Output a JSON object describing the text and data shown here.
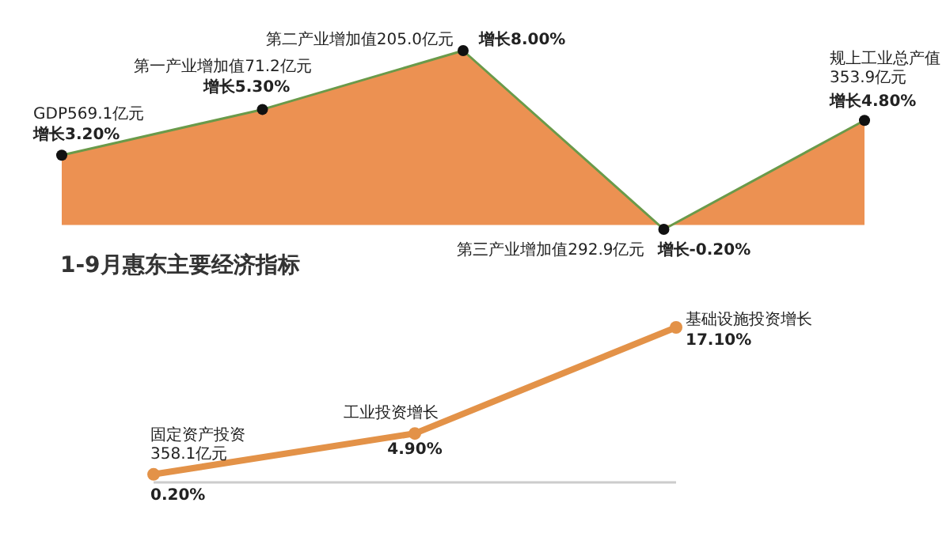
{
  "chart_data": [
    {
      "type": "area",
      "categories": [
        null,
        null,
        null,
        null,
        null
      ],
      "values": [
        3.2,
        5.3,
        8.0,
        -0.2,
        4.8
      ],
      "value_labels": [
        "增长3.20%",
        "增长5.30%",
        "增长8.00%",
        "增长-0.20%",
        "增长4.80%"
      ],
      "annotations": [
        "GDP569.1亿元",
        "第一产业增加值71.2亿元",
        "第二产业增加值205.0亿元",
        "第三产业增加值292.9亿元",
        "规上工业总产值\n353.9亿元"
      ],
      "color": "#ec9152",
      "marker": "circle"
    },
    {
      "type": "line",
      "title": "1-9月惠东主要经济指标",
      "categories": [
        null,
        null,
        null
      ],
      "values": [
        0.2,
        4.9,
        17.1
      ],
      "value_labels": [
        "0.20%",
        "4.90%",
        "17.10%"
      ],
      "annotations": [
        "固定资产投资\n358.1亿元",
        "工业投资增长",
        "基础设施投资增长"
      ],
      "color": "#e39248",
      "marker": "circle"
    }
  ]
}
